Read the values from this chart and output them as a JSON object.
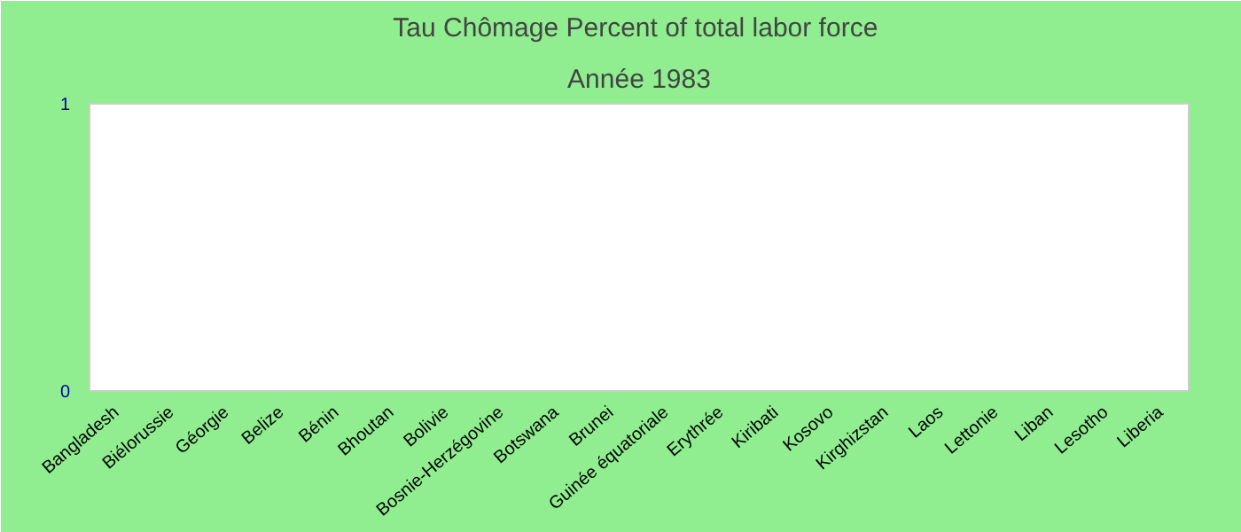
{
  "chart_data": {
    "type": "bar",
    "title": "Tau Chômage  Percent of total labor force",
    "subtitle": "Année 1983",
    "categories": [
      "Bangladesh",
      "Biélorussie",
      "Géorgie",
      "Belize",
      "Bénin",
      "Bhoutan",
      "Bolivie",
      "Bosnie-Herzégovine",
      "Botswana",
      "Brunei",
      "Guinée équatoriale",
      "Erythrée",
      "Kiribati",
      "Kosovo",
      "Kirghizstan",
      "Laos",
      "Lettonie",
      "Liban",
      "Lesotho",
      "Liberia"
    ],
    "values": [
      null,
      null,
      null,
      null,
      null,
      null,
      null,
      null,
      null,
      null,
      null,
      null,
      null,
      null,
      null,
      null,
      null,
      null,
      null,
      null
    ],
    "ylim": [
      0,
      1
    ],
    "yticks": [
      0,
      1
    ],
    "grid": false
  }
}
